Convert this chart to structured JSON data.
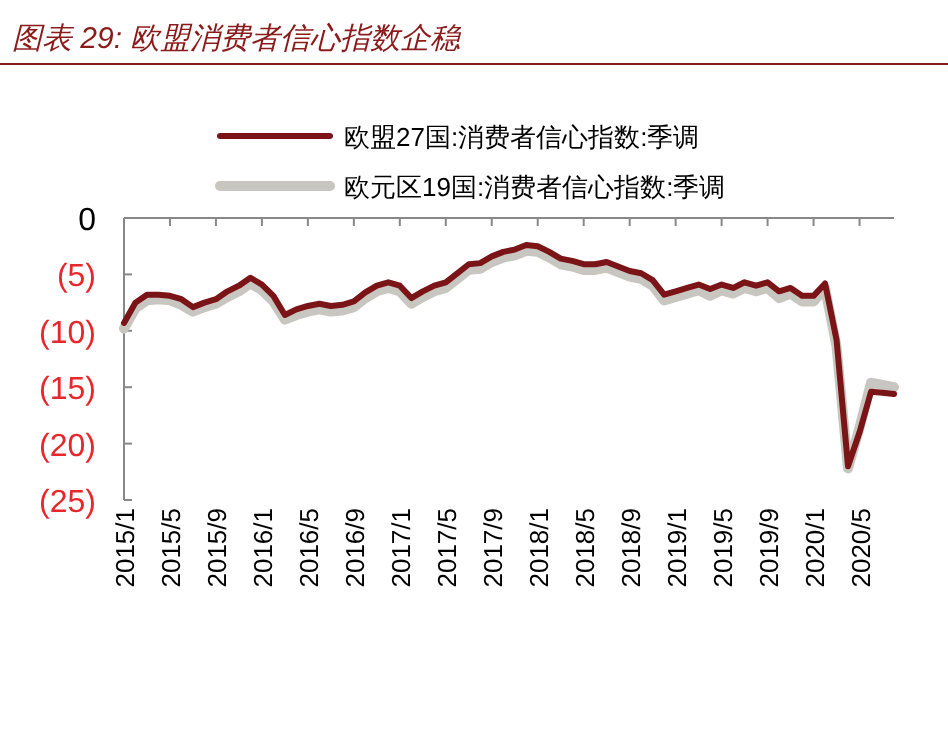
{
  "chart_data": {
    "type": "line",
    "title": "图表 29: 欧盟消费者信心指数企稳",
    "legend": "top",
    "x": [
      "2015-01",
      "2015-02",
      "2015-03",
      "2015-04",
      "2015-05",
      "2015-06",
      "2015-07",
      "2015-08",
      "2015-09",
      "2015-10",
      "2015-11",
      "2015-12",
      "2016-01",
      "2016-02",
      "2016-03",
      "2016-04",
      "2016-05",
      "2016-06",
      "2016-07",
      "2016-08",
      "2016-09",
      "2016-10",
      "2016-11",
      "2016-12",
      "2017-01",
      "2017-02",
      "2017-03",
      "2017-04",
      "2017-05",
      "2017-06",
      "2017-07",
      "2017-08",
      "2017-09",
      "2017-10",
      "2017-11",
      "2017-12",
      "2018-01",
      "2018-02",
      "2018-03",
      "2018-04",
      "2018-05",
      "2018-06",
      "2018-07",
      "2018-08",
      "2018-09",
      "2018-10",
      "2018-11",
      "2018-12",
      "2019-01",
      "2019-02",
      "2019-03",
      "2019-04",
      "2019-05",
      "2019-06",
      "2019-07",
      "2019-08",
      "2019-09",
      "2019-10",
      "2019-11",
      "2019-12",
      "2020-01",
      "2020-02",
      "2020-03",
      "2020-04",
      "2020-05",
      "2020-06",
      "2020-07",
      "2020-08"
    ],
    "series": [
      {
        "name": "欧元区19国:消费者信心指数:季调",
        "color": "#c8c6c0",
        "values": [
          -9.8,
          -8.0,
          -7.3,
          -7.2,
          -7.3,
          -7.7,
          -8.3,
          -7.9,
          -7.6,
          -7.0,
          -6.5,
          -5.8,
          -6.4,
          -7.4,
          -9.0,
          -8.6,
          -8.3,
          -8.1,
          -8.3,
          -8.2,
          -7.9,
          -7.1,
          -6.5,
          -6.2,
          -6.5,
          -7.6,
          -7.0,
          -6.5,
          -6.2,
          -5.4,
          -4.6,
          -4.5,
          -3.9,
          -3.5,
          -3.3,
          -2.9,
          -3.0,
          -3.5,
          -4.1,
          -4.3,
          -4.6,
          -4.6,
          -4.4,
          -4.8,
          -5.2,
          -5.4,
          -6.0,
          -7.3,
          -7.0,
          -6.7,
          -6.4,
          -6.9,
          -6.4,
          -6.7,
          -6.2,
          -6.5,
          -6.2,
          -7.1,
          -6.7,
          -7.4,
          -7.4,
          -6.2,
          -11.4,
          -22.2,
          -18.6,
          -14.6,
          -14.8,
          -15.0
        ]
      },
      {
        "name": "欧盟27国:消费者信心指数:季调",
        "color": "#7b1416",
        "values": [
          -9.3,
          -7.5,
          -6.8,
          -6.8,
          -6.9,
          -7.2,
          -7.9,
          -7.5,
          -7.2,
          -6.5,
          -6.0,
          -5.3,
          -5.9,
          -6.9,
          -8.6,
          -8.1,
          -7.8,
          -7.6,
          -7.8,
          -7.7,
          -7.4,
          -6.6,
          -6.0,
          -5.7,
          -6.0,
          -7.1,
          -6.5,
          -6.0,
          -5.7,
          -4.9,
          -4.1,
          -4.0,
          -3.4,
          -3.0,
          -2.8,
          -2.4,
          -2.5,
          -3.0,
          -3.6,
          -3.8,
          -4.1,
          -4.1,
          -3.9,
          -4.3,
          -4.7,
          -4.9,
          -5.5,
          -6.8,
          -6.5,
          -6.2,
          -5.9,
          -6.3,
          -5.9,
          -6.2,
          -5.7,
          -6.0,
          -5.7,
          -6.5,
          -6.2,
          -6.9,
          -6.9,
          -5.8,
          -10.8,
          -22.0,
          -19.0,
          -15.4,
          -15.5,
          -15.6
        ]
      }
    ],
    "ylim": [
      -25,
      0
    ],
    "yticks": [
      0,
      {
        "value": -5,
        "label": "(5)"
      },
      {
        "value": -10,
        "label": "(10)"
      },
      {
        "value": -15,
        "label": "(15)"
      },
      {
        "value": -20,
        "label": "(20)"
      },
      {
        "value": -25,
        "label": "(25)"
      }
    ],
    "xlim": [
      "2015-01",
      "2020-08"
    ],
    "xticks": [
      {
        "value": "2015-01",
        "label": "2015/1"
      },
      {
        "value": "2015-05",
        "label": "2015/5"
      },
      {
        "value": "2015-09",
        "label": "2015/9"
      },
      {
        "value": "2016-01",
        "label": "2016/1"
      },
      {
        "value": "2016-05",
        "label": "2016/5"
      },
      {
        "value": "2016-09",
        "label": "2016/9"
      },
      {
        "value": "2017-01",
        "label": "2017/1"
      },
      {
        "value": "2017-05",
        "label": "2017/5"
      },
      {
        "value": "2017-09",
        "label": "2017/9"
      },
      {
        "value": "2018-01",
        "label": "2018/1"
      },
      {
        "value": "2018-05",
        "label": "2018/5"
      },
      {
        "value": "2018-09",
        "label": "2018/9"
      },
      {
        "value": "2019-01",
        "label": "2019/1"
      },
      {
        "value": "2019-05",
        "label": "2019/5"
      },
      {
        "value": "2019-09",
        "label": "2019/9"
      },
      {
        "value": "2020-01",
        "label": "2020/1"
      },
      {
        "value": "2020-05",
        "label": "2020/5"
      }
    ]
  }
}
